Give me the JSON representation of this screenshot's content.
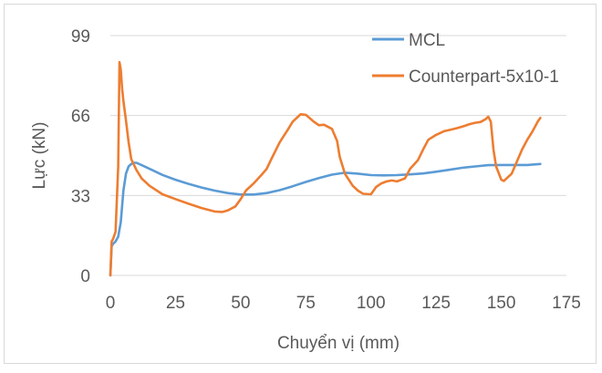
{
  "chart_data": {
    "type": "line",
    "title": "",
    "xlabel": "Chuyển vị (mm)",
    "ylabel": "Lực (kN)",
    "xlim": [
      0,
      175
    ],
    "ylim": [
      0,
      99
    ],
    "xticks": [
      0,
      25,
      50,
      75,
      100,
      125,
      150,
      175
    ],
    "yticks": [
      0,
      33,
      66,
      99
    ],
    "xtick_labels": [
      "0",
      "25",
      "50",
      "75",
      "100",
      "125",
      "150",
      "175"
    ],
    "ytick_labels": [
      "0",
      "33",
      "66",
      "99"
    ],
    "grid": "horizontal",
    "legend_position": "top-right",
    "series": [
      {
        "name": "MCL",
        "color": "#5b9bd5",
        "x": [
          0,
          0.5,
          1,
          2,
          3,
          4,
          5,
          6,
          7,
          8,
          9,
          10,
          12,
          15,
          20,
          25,
          30,
          35,
          40,
          45,
          50,
          55,
          60,
          65,
          70,
          75,
          80,
          85,
          90,
          95,
          100,
          105,
          110,
          115,
          120,
          125,
          130,
          135,
          140,
          145,
          150,
          155,
          160,
          165
        ],
        "y": [
          0,
          12,
          13,
          14,
          16,
          22,
          35,
          42,
          45,
          46,
          46.5,
          46.5,
          45.5,
          44,
          41.5,
          39.5,
          37.8,
          36.3,
          35,
          34,
          33.4,
          33.4,
          34,
          35.2,
          36.8,
          38.6,
          40.2,
          41.6,
          42.4,
          42,
          41.4,
          41.3,
          41.4,
          41.7,
          42.1,
          42.8,
          43.6,
          44.4,
          45,
          45.5,
          45.6,
          45.6,
          45.6,
          46
        ]
      },
      {
        "name": "Counterpart-5x10-1",
        "color": "#ed7d31",
        "x": [
          0,
          0.5,
          1,
          2,
          3,
          3.5,
          4,
          4.5,
          5,
          6,
          7,
          8,
          10,
          12,
          15,
          20,
          25,
          30,
          35,
          40,
          43,
          45,
          48,
          50,
          52,
          55,
          58,
          60,
          62,
          65,
          68,
          70,
          72,
          73,
          75,
          78,
          80,
          82,
          85,
          87,
          88,
          90,
          93,
          95,
          97,
          100,
          102,
          104,
          106,
          108,
          110,
          113,
          115,
          118,
          120,
          122,
          125,
          128,
          130,
          133,
          135,
          138,
          140,
          142,
          144,
          145,
          146,
          147,
          148,
          150,
          151,
          152,
          154,
          156,
          158,
          160,
          162,
          164,
          165
        ],
        "y": [
          0,
          14,
          15,
          18,
          45,
          88,
          85,
          77,
          72,
          64,
          55,
          48,
          43.5,
          40,
          37,
          33.5,
          31.5,
          29.6,
          27.8,
          26.4,
          26.2,
          26.8,
          28.5,
          31.5,
          35,
          38,
          41.5,
          44,
          48.5,
          55,
          60,
          63.5,
          65.5,
          66.5,
          66.3,
          63.5,
          62,
          62.2,
          60.5,
          55.5,
          49,
          42,
          37,
          35,
          33.7,
          33.5,
          36.5,
          38,
          38.8,
          39.2,
          38.8,
          40,
          44,
          47.5,
          52,
          56,
          58,
          59.5,
          60,
          60.8,
          61.4,
          62.5,
          63,
          63.3,
          64.5,
          65.5,
          63.5,
          52,
          45,
          39.5,
          39,
          40,
          42,
          47,
          52,
          56,
          59.5,
          63.5,
          65
        ]
      }
    ]
  }
}
